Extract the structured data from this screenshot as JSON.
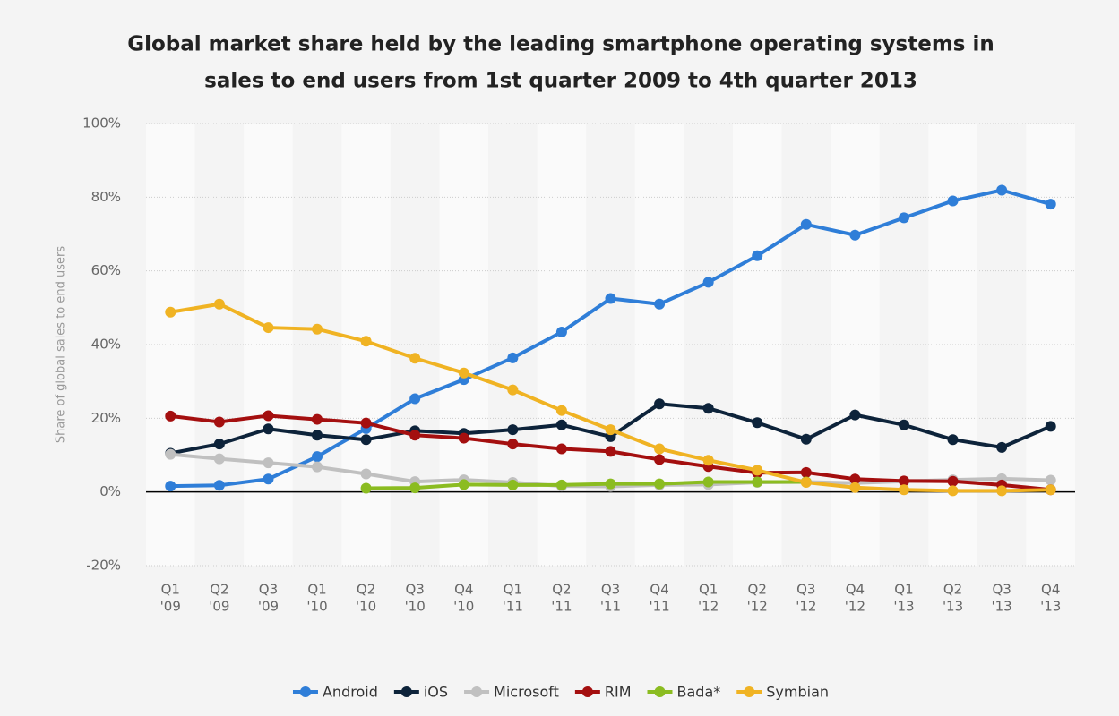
{
  "chart_data": {
    "type": "line",
    "title": [
      "Global market share held by the leading smartphone operating systems in",
      "sales to end users from 1st quarter 2009 to 4th quarter 2013"
    ],
    "y_label": "Share of global sales to end users",
    "categories": [
      [
        "Q1",
        "'09"
      ],
      [
        "Q2",
        "'09"
      ],
      [
        "Q3",
        "'09"
      ],
      [
        "Q1",
        "'10"
      ],
      [
        "Q2",
        "'10"
      ],
      [
        "Q3",
        "'10"
      ],
      [
        "Q4",
        "'10"
      ],
      [
        "Q1",
        "'11"
      ],
      [
        "Q2",
        "'11"
      ],
      [
        "Q3",
        "'11"
      ],
      [
        "Q4",
        "'11"
      ],
      [
        "Q1",
        "'12"
      ],
      [
        "Q2",
        "'12"
      ],
      [
        "Q3",
        "'12"
      ],
      [
        "Q4",
        "'12"
      ],
      [
        "Q1",
        "'13"
      ],
      [
        "Q2",
        "'13"
      ],
      [
        "Q3",
        "'13"
      ],
      [
        "Q4",
        "'13"
      ]
    ],
    "series": [
      {
        "name": "Android",
        "color": "#2f7ed8",
        "values": [
          1.6,
          1.8,
          3.5,
          9.6,
          17.2,
          25.3,
          30.5,
          36.4,
          43.4,
          52.5,
          51.0,
          56.9,
          64.1,
          72.6,
          69.7,
          74.4,
          79.0,
          81.9,
          78.1
        ]
      },
      {
        "name": "iOS",
        "color": "#0d233a",
        "values": [
          10.5,
          13.0,
          17.1,
          15.4,
          14.2,
          16.6,
          15.9,
          16.9,
          18.2,
          15.0,
          23.9,
          22.7,
          18.8,
          14.3,
          20.9,
          18.2,
          14.2,
          12.1,
          17.8
        ]
      },
      {
        "name": "Microsoft",
        "color": "#c0c0c0",
        "values": [
          10.2,
          9.0,
          7.9,
          6.8,
          4.9,
          2.8,
          3.3,
          2.6,
          1.6,
          1.5,
          1.9,
          2.0,
          2.6,
          2.7,
          2.4,
          2.9,
          3.3,
          3.6,
          3.2
        ]
      },
      {
        "name": "RIM",
        "color": "#a40f0f",
        "values": [
          20.6,
          19.0,
          20.7,
          19.7,
          18.7,
          15.4,
          14.6,
          13.0,
          11.7,
          11.0,
          8.8,
          6.9,
          5.2,
          5.3,
          3.5,
          3.0,
          2.9,
          1.9,
          0.6
        ]
      },
      {
        "name": "Bada*",
        "color": "#8bbc21",
        "values": [
          null,
          null,
          null,
          null,
          1.0,
          1.1,
          2.0,
          1.9,
          1.9,
          2.2,
          2.2,
          2.7,
          2.7,
          2.7,
          null,
          null,
          null,
          null,
          null
        ]
      },
      {
        "name": "Symbian",
        "color": "#f0b323",
        "values": [
          48.8,
          51.0,
          44.6,
          44.2,
          40.9,
          36.3,
          32.3,
          27.7,
          22.1,
          16.9,
          11.7,
          8.6,
          5.9,
          2.6,
          1.2,
          0.6,
          0.3,
          0.3,
          0.6
        ]
      }
    ],
    "ylim": [
      -20,
      100
    ],
    "yticks": [
      {
        "value": -20,
        "label": "-20%"
      },
      {
        "value": 0,
        "label": "0%"
      },
      {
        "value": 20,
        "label": "20%"
      },
      {
        "value": 40,
        "label": "40%"
      },
      {
        "value": 60,
        "label": "60%"
      },
      {
        "value": 80,
        "label": "80%"
      },
      {
        "value": 100,
        "label": "100%"
      }
    ],
    "grid": true,
    "legend": "bottom"
  }
}
